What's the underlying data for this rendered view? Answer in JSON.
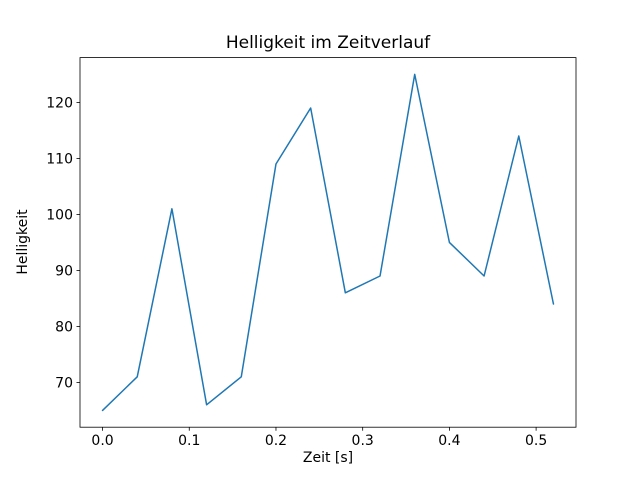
{
  "figure": {
    "background": "#ffffff"
  },
  "chart_data": {
    "type": "line",
    "title": "Helligkeit im Zeitverlauf",
    "xlabel": "Zeit [s]",
    "ylabel": "Helligkeit",
    "x": [
      0.0,
      0.04,
      0.08,
      0.12,
      0.16,
      0.2,
      0.24,
      0.28,
      0.32,
      0.36,
      0.4,
      0.44,
      0.48,
      0.52
    ],
    "y": [
      65,
      71,
      101,
      66,
      71,
      109,
      119,
      86,
      89,
      125,
      95,
      89,
      114,
      84
    ],
    "xlim": [
      -0.026,
      0.546
    ],
    "ylim": [
      62,
      128
    ],
    "xtick_values": [
      0.0,
      0.1,
      0.2,
      0.3,
      0.4,
      0.5
    ],
    "xtick_labels": [
      "0.0",
      "0.1",
      "0.2",
      "0.3",
      "0.4",
      "0.5"
    ],
    "ytick_values": [
      70,
      80,
      90,
      100,
      110,
      120
    ],
    "ytick_labels": [
      "70",
      "80",
      "90",
      "100",
      "110",
      "120"
    ],
    "grid": false,
    "legend_position": "none",
    "line_color": "#1f77b4",
    "line_width": 1.5,
    "axis_color": "#000000",
    "text_color": "#000000"
  }
}
